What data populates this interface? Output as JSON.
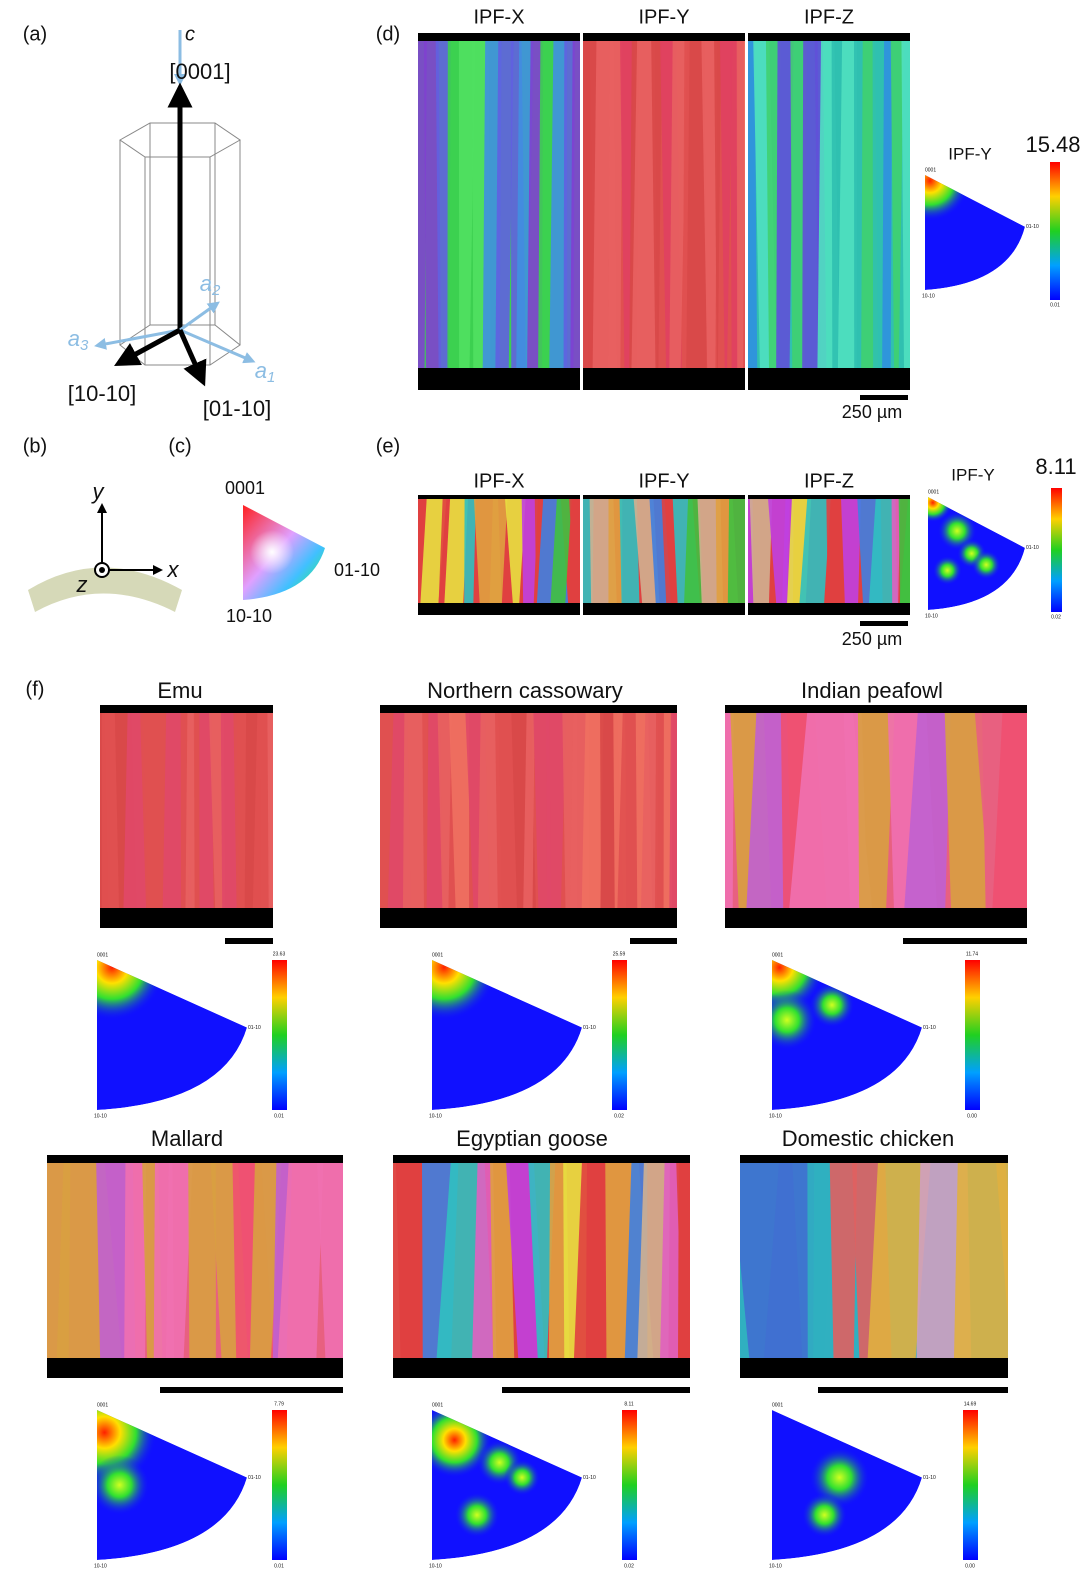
{
  "panel_labels": {
    "a": "(a)",
    "b": "(b)",
    "c": "(c)",
    "d": "(d)",
    "e": "(e)",
    "f": "(f)"
  },
  "a": {
    "c_axis_label": "c",
    "c_direction": "[0001]",
    "a_axes": [
      {
        "letter": "a",
        "sub": "2"
      },
      {
        "letter": "a",
        "sub": "3"
      },
      {
        "letter": "a",
        "sub": "1"
      }
    ],
    "directions": [
      "[10-10]",
      "[01-10]"
    ]
  },
  "b": {
    "y": "y",
    "x": "x",
    "z": "z"
  },
  "c": {
    "corners": [
      "0001",
      "01-10",
      "10-10"
    ]
  },
  "pole_labels": [
    "0001",
    "01-10",
    "10-10"
  ],
  "d": {
    "maps": [
      "IPF-X",
      "IPF-Y",
      "IPF-Z"
    ],
    "scale_bar": "250 µm",
    "pole_figure": {
      "title": "IPF-Y",
      "max": "15.48",
      "min": "0.01"
    }
  },
  "e": {
    "maps": [
      "IPF-X",
      "IPF-Y",
      "IPF-Z"
    ],
    "scale_bar": "250 µm",
    "pole_figure": {
      "title": "IPF-Y",
      "max": "8.11",
      "min": "0.02"
    }
  },
  "f": {
    "specimens": [
      {
        "name": "Emu",
        "max": "23.63",
        "min": "0.01"
      },
      {
        "name": "Northern cassowary",
        "max": "25.59",
        "min": "0.02"
      },
      {
        "name": "Indian peafowl",
        "max": "11.74",
        "min": "0.00"
      },
      {
        "name": "Mallard",
        "max": "7.79",
        "min": "0.01"
      },
      {
        "name": "Egyptian goose",
        "max": "8.11",
        "min": "0.02"
      },
      {
        "name": "Domestic chicken",
        "max": "14.69",
        "min": "0.00"
      }
    ]
  }
}
